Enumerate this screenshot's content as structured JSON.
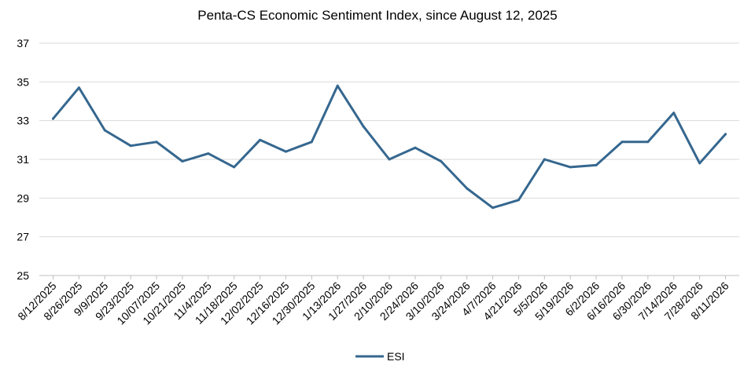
{
  "chart_data": {
    "type": "line",
    "title": "Penta-CS Economic Sentiment Index, since August 12, 2025",
    "xlabel": "",
    "ylabel": "",
    "ylim": [
      25,
      37
    ],
    "yticks": [
      25,
      27,
      29,
      31,
      33,
      35,
      37
    ],
    "grid": true,
    "legend": "bottom-center",
    "categories": [
      "8/12/2025",
      "8/26/2025",
      "9/9/2025",
      "9/23/2025",
      "10/07/2025",
      "10/21/2025",
      "11/4/2025",
      "11/18/2025",
      "12/02/2025",
      "12/16/2025",
      "12/30/2025",
      "1/13/2026",
      "1/27/2026",
      "2/10/2026",
      "2/24/2026",
      "3/10/2026",
      "3/24/2026",
      "4/7/2026",
      "4/21/2026",
      "5/5/2026",
      "5/19/2026",
      "6/2/2026",
      "6/16/2026",
      "6/30/2026",
      "7/14/2026",
      "7/28/2026",
      "8/11/2026"
    ],
    "series": [
      {
        "name": "ESI",
        "color": "#35678f",
        "values": [
          33.1,
          34.7,
          32.5,
          31.7,
          31.9,
          30.9,
          31.3,
          30.6,
          32.0,
          31.4,
          31.9,
          34.8,
          32.7,
          31.0,
          31.6,
          30.9,
          29.5,
          28.5,
          28.9,
          31.0,
          30.6,
          30.7,
          31.9,
          31.9,
          33.4,
          30.8,
          32.3
        ]
      }
    ]
  }
}
